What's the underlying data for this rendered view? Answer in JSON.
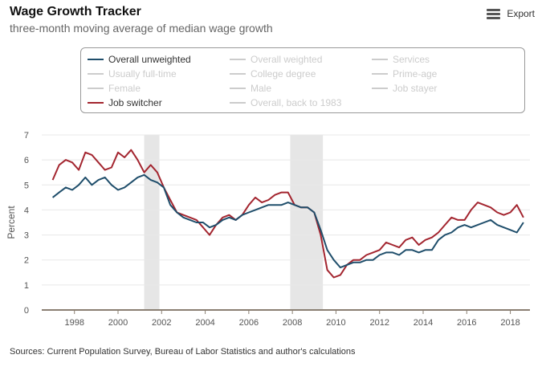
{
  "header": {
    "title": "Wage Growth Tracker",
    "subtitle": "three-month moving average of median wage growth",
    "export_label": "Export"
  },
  "legend": {
    "items": [
      {
        "label": "Overall unweighted",
        "active": true,
        "color": "#1f4e6b"
      },
      {
        "label": "Overall weighted",
        "active": false
      },
      {
        "label": "Services",
        "active": false
      },
      {
        "label": "Usually full-time",
        "active": false
      },
      {
        "label": "College degree",
        "active": false
      },
      {
        "label": "Prime-age",
        "active": false
      },
      {
        "label": "Female",
        "active": false
      },
      {
        "label": "Male",
        "active": false
      },
      {
        "label": "Job stayer",
        "active": false
      },
      {
        "label": "Job switcher",
        "active": true,
        "color": "#a3252f"
      },
      {
        "label": "Overall, back to 1983",
        "active": false
      }
    ]
  },
  "source": "Sources: Current Population Survey, Bureau of Labor Statistics and author's calculations",
  "chart_data": {
    "type": "line",
    "ylabel": "Percent",
    "xlabel": "",
    "ylim": [
      0,
      7
    ],
    "yticks": [
      0,
      1,
      2,
      3,
      4,
      5,
      6,
      7
    ],
    "xlim": [
      1996.5,
      2018.9
    ],
    "xticks": [
      1998,
      2000,
      2002,
      2004,
      2006,
      2008,
      2010,
      2012,
      2014,
      2016,
      2018
    ],
    "grid": true,
    "recessions": [
      [
        2001.2,
        2001.9
      ],
      [
        2007.9,
        2009.4
      ]
    ],
    "series": [
      {
        "name": "Overall unweighted",
        "color": "#1f4e6b",
        "x": [
          1997.0,
          1997.3,
          1997.6,
          1997.9,
          1998.2,
          1998.5,
          1998.8,
          1999.1,
          1999.4,
          1999.7,
          2000.0,
          2000.3,
          2000.6,
          2000.9,
          2001.2,
          2001.5,
          2001.8,
          2002.1,
          2002.4,
          2002.7,
          2003.0,
          2003.3,
          2003.6,
          2003.9,
          2004.2,
          2004.5,
          2004.8,
          2005.1,
          2005.4,
          2005.7,
          2006.0,
          2006.3,
          2006.6,
          2006.9,
          2007.2,
          2007.5,
          2007.8,
          2008.1,
          2008.4,
          2008.7,
          2009.0,
          2009.3,
          2009.6,
          2009.9,
          2010.2,
          2010.5,
          2010.8,
          2011.1,
          2011.4,
          2011.7,
          2012.0,
          2012.3,
          2012.6,
          2012.9,
          2013.2,
          2013.5,
          2013.8,
          2014.1,
          2014.4,
          2014.7,
          2015.0,
          2015.3,
          2015.6,
          2015.9,
          2016.2,
          2016.5,
          2016.8,
          2017.1,
          2017.4,
          2017.7,
          2018.0,
          2018.3,
          2018.6
        ],
        "values": [
          4.5,
          4.7,
          4.9,
          4.8,
          5.0,
          5.3,
          5.0,
          5.2,
          5.3,
          5.0,
          4.8,
          4.9,
          5.1,
          5.3,
          5.4,
          5.2,
          5.1,
          4.9,
          4.2,
          3.9,
          3.7,
          3.6,
          3.5,
          3.5,
          3.3,
          3.4,
          3.6,
          3.7,
          3.6,
          3.8,
          3.9,
          4.0,
          4.1,
          4.2,
          4.2,
          4.2,
          4.3,
          4.2,
          4.1,
          4.1,
          3.9,
          3.2,
          2.4,
          2.0,
          1.7,
          1.8,
          1.9,
          1.9,
          2.0,
          2.0,
          2.2,
          2.3,
          2.3,
          2.2,
          2.4,
          2.4,
          2.3,
          2.4,
          2.4,
          2.8,
          3.0,
          3.1,
          3.3,
          3.4,
          3.3,
          3.4,
          3.5,
          3.6,
          3.4,
          3.3,
          3.2,
          3.1,
          3.5
        ]
      },
      {
        "name": "Job switcher",
        "color": "#a3252f",
        "x": [
          1997.0,
          1997.3,
          1997.6,
          1997.9,
          1998.2,
          1998.5,
          1998.8,
          1999.1,
          1999.4,
          1999.7,
          2000.0,
          2000.3,
          2000.6,
          2000.9,
          2001.2,
          2001.5,
          2001.8,
          2002.1,
          2002.4,
          2002.7,
          2003.0,
          2003.3,
          2003.6,
          2003.9,
          2004.2,
          2004.5,
          2004.8,
          2005.1,
          2005.4,
          2005.7,
          2006.0,
          2006.3,
          2006.6,
          2006.9,
          2007.2,
          2007.5,
          2007.8,
          2008.1,
          2008.4,
          2008.7,
          2009.0,
          2009.3,
          2009.6,
          2009.9,
          2010.2,
          2010.5,
          2010.8,
          2011.1,
          2011.4,
          2011.7,
          2012.0,
          2012.3,
          2012.6,
          2012.9,
          2013.2,
          2013.5,
          2013.8,
          2014.1,
          2014.4,
          2014.7,
          2015.0,
          2015.3,
          2015.6,
          2015.9,
          2016.2,
          2016.5,
          2016.8,
          2017.1,
          2017.4,
          2017.7,
          2018.0,
          2018.3,
          2018.6
        ],
        "values": [
          5.2,
          5.8,
          6.0,
          5.9,
          5.6,
          6.3,
          6.2,
          5.9,
          5.6,
          5.7,
          6.3,
          6.1,
          6.4,
          6.0,
          5.5,
          5.8,
          5.5,
          4.9,
          4.4,
          3.9,
          3.8,
          3.7,
          3.6,
          3.3,
          3.0,
          3.4,
          3.7,
          3.8,
          3.6,
          3.8,
          4.2,
          4.5,
          4.3,
          4.4,
          4.6,
          4.7,
          4.7,
          4.2,
          4.1,
          4.1,
          3.9,
          3.0,
          1.6,
          1.3,
          1.4,
          1.8,
          2.0,
          2.0,
          2.2,
          2.3,
          2.4,
          2.7,
          2.6,
          2.5,
          2.8,
          2.9,
          2.6,
          2.8,
          2.9,
          3.1,
          3.4,
          3.7,
          3.6,
          3.6,
          4.0,
          4.3,
          4.2,
          4.1,
          3.9,
          3.8,
          3.9,
          4.2,
          3.7
        ]
      }
    ]
  }
}
